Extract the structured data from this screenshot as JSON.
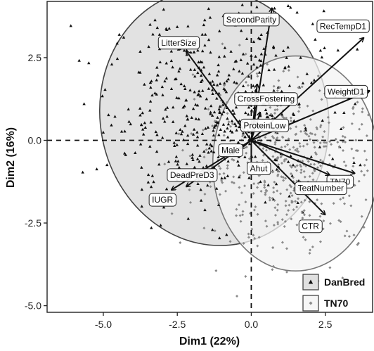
{
  "chart_data": {
    "type": "scatter",
    "xlabel": "Dim1 (22%)",
    "ylabel": "Dim2 (16%)",
    "xlim": [
      -6.9,
      4.1
    ],
    "ylim": [
      -5.2,
      4.2
    ],
    "x_ticks": [
      -5.0,
      -2.5,
      0.0,
      2.5
    ],
    "x_tick_labels": [
      "-5.0",
      "-2.5",
      "0.0",
      "2.5"
    ],
    "y_ticks": [
      -5.0,
      -2.5,
      0.0,
      2.5
    ],
    "y_tick_labels": [
      "-5.0",
      "-2.5",
      "0.0",
      "2.5"
    ],
    "reference_lines": {
      "x": 0,
      "y": 0,
      "style": "dashed"
    },
    "grid": false,
    "legend": {
      "placement": "bottom-right",
      "entries": [
        {
          "label": "DanBred",
          "marker": "triangle",
          "fill": "#e0e0e0"
        },
        {
          "label": "TN70",
          "marker": "diamond",
          "fill": "#f6f6f6"
        }
      ]
    },
    "groups": [
      {
        "name": "DanBred",
        "marker": "triangle",
        "color": "#111111",
        "ellipse_fill": "#d8d8d8",
        "ellipse_stroke": "#444444",
        "ellipse": {
          "cx": -1.25,
          "cy": 0.7,
          "rx": 3.85,
          "ry": 3.9,
          "angle_deg": 12
        },
        "scatter_center": [
          -1.2,
          1.0
        ],
        "scatter_spread": [
          1.8,
          1.5
        ],
        "n_points": 520
      },
      {
        "name": "TN70",
        "marker": "diamond",
        "color": "#8a8a8a",
        "ellipse_fill": "#f3f3f3",
        "ellipse_stroke": "#777777",
        "ellipse": {
          "cx": 1.5,
          "cy": -0.7,
          "rx": 2.8,
          "ry": 3.25,
          "angle_deg": 0
        },
        "scatter_center": [
          1.4,
          -0.8
        ],
        "scatter_spread": [
          1.6,
          1.3
        ],
        "n_points": 520
      }
    ],
    "variables": [
      {
        "name": "SecondParity",
        "x": 0.7,
        "y": 4.0,
        "label_x": 0.0,
        "label_y": 3.65
      },
      {
        "name": "RecTempD1",
        "x": 3.8,
        "y": 3.1,
        "label_x": 3.1,
        "label_y": 3.45
      },
      {
        "name": "LitterSize",
        "x": -2.2,
        "y": 2.7,
        "label_x": -2.45,
        "label_y": 2.95
      },
      {
        "name": "WeightD1",
        "x": 4.0,
        "y": 1.5,
        "label_x": 3.2,
        "label_y": 1.47
      },
      {
        "name": "CrossFostering",
        "x": 0.2,
        "y": 1.7,
        "label_x": 0.5,
        "label_y": 1.25
      },
      {
        "name": "ProteinLow",
        "x": 0.3,
        "y": 0.85,
        "label_x": 0.45,
        "label_y": 0.45
      },
      {
        "name": "Male",
        "x": -0.35,
        "y": -0.25,
        "label_x": -0.7,
        "label_y": -0.3
      },
      {
        "name": "DeadPreD3",
        "x": -2.2,
        "y": -1.4,
        "label_x": -2.0,
        "label_y": -1.05
      },
      {
        "name": "Ahut",
        "x": 0.0,
        "y": -0.9,
        "label_x": 0.25,
        "label_y": -0.85
      },
      {
        "name": "IUGR",
        "x": -2.7,
        "y": -1.5,
        "label_x": -3.0,
        "label_y": -1.8
      },
      {
        "name": "TN70",
        "x": 3.5,
        "y": -1.0,
        "label_x": 3.0,
        "label_y": -1.25
      },
      {
        "name": "TeatNumber",
        "x": 2.65,
        "y": -1.05,
        "label_x": 2.35,
        "label_y": -1.45
      },
      {
        "name": "CTR",
        "x": 2.5,
        "y": -2.25,
        "label_x": 2.0,
        "label_y": -2.6
      }
    ]
  }
}
